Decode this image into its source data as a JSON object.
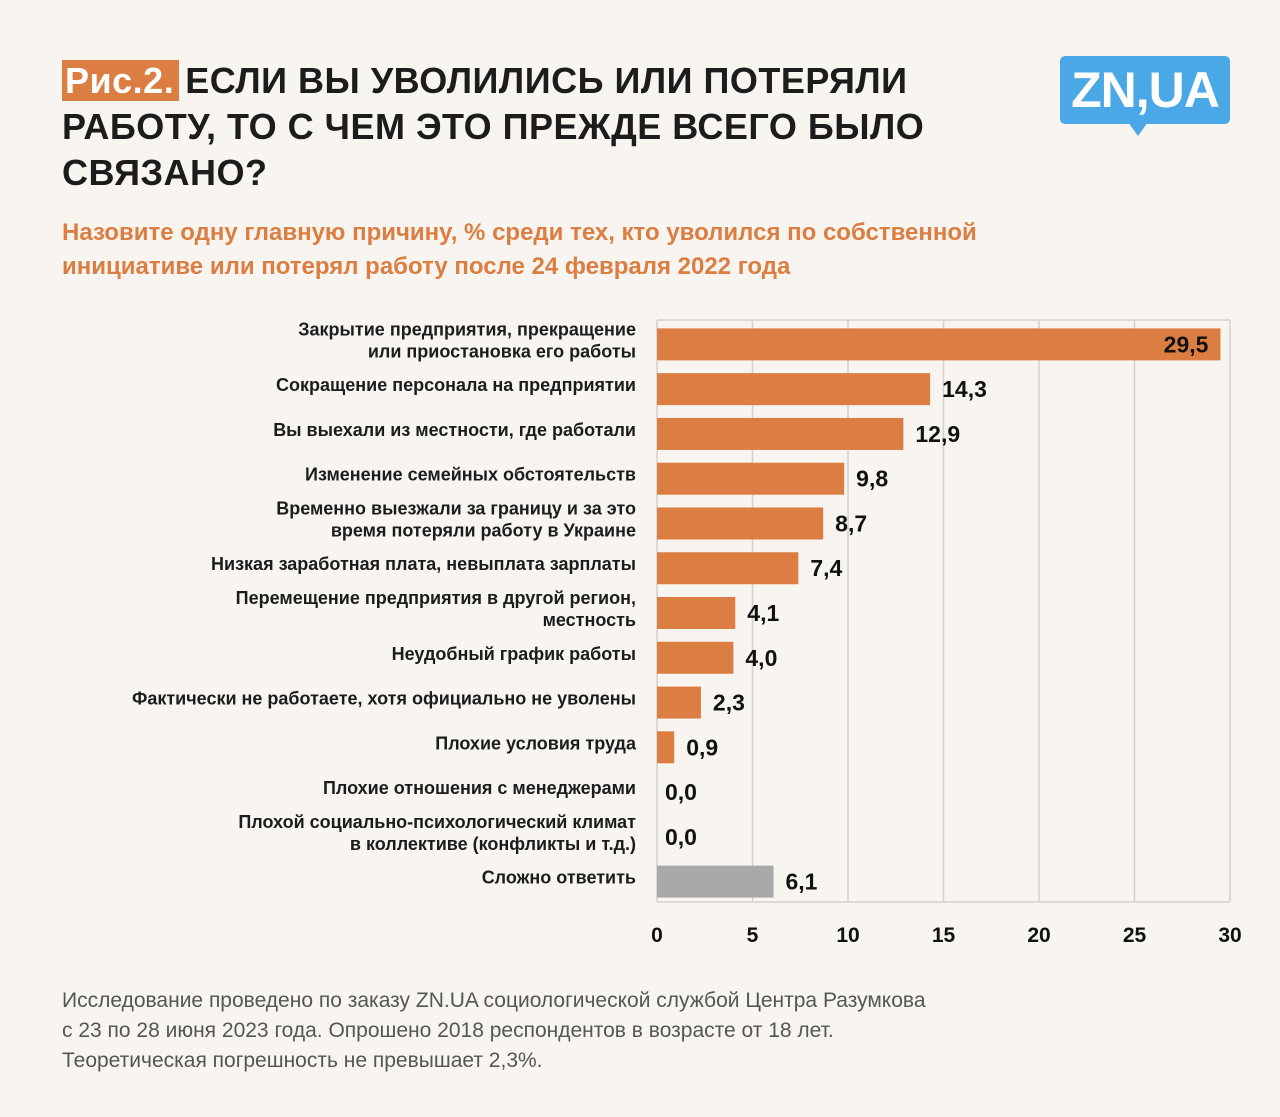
{
  "header": {
    "fig_badge": "Рис.2.",
    "title": "ЕСЛИ ВЫ УВОЛИЛИСЬ ИЛИ ПОТЕРЯЛИ РАБОТУ, ТО С ЧЕМ ЭТО ПРЕЖДЕ ВСЕГО БЫЛО СВЯЗАНО?",
    "subtitle": "Назовите одну главную причину, % среди тех, кто уволился по собственной инициативе или потерял работу после 24 февраля 2022 года",
    "logo_text": "ZN,UA"
  },
  "footer": {
    "lines": [
      "Исследование проведено по заказу ZN.UA социологической службой Центра Разумкова",
      "с 23 по 28 июня 2023 года. Опрошено 2018 респондентов в возрасте от 18 лет.",
      "Теоретическая погрешность не превышает 2,3%."
    ]
  },
  "colors": {
    "bar": "#dc7d41",
    "bar_hard_to_say": "#a9a9a9",
    "accent": "#dc7d41",
    "logo": "#4aa8e6",
    "background": "#f8f5f0",
    "grid": "#d4d1cc"
  },
  "chart_data": {
    "type": "bar",
    "orientation": "horizontal",
    "title": "Если вы уволились или потеряли работу, то с чем это прежде всего было связано?",
    "xlabel": "",
    "ylabel": "",
    "xlim": [
      0,
      30
    ],
    "x_ticks": [
      0,
      5,
      10,
      15,
      20,
      25,
      30
    ],
    "grid": true,
    "categories": [
      [
        "Закрытие предприятия, прекращение",
        "или приостановка его работы"
      ],
      [
        "Сокращение персонала на предприятии"
      ],
      [
        "Вы выехали из местности, где работали"
      ],
      [
        "Изменение семейных обстоятельств"
      ],
      [
        "Временно выезжали за границу и за это",
        "время потеряли работу в Украине"
      ],
      [
        "Низкая заработная плата, невыплата зарплаты"
      ],
      [
        "Перемещение предприятия в другой регион,",
        "местность"
      ],
      [
        "Неудобный график работы"
      ],
      [
        "Фактически не работаете, хотя официально не уволены"
      ],
      [
        "Плохие условия труда"
      ],
      [
        "Плохие отношения с менеджерами"
      ],
      [
        "Плохой социально-психологический климат",
        "в коллективе (конфликты и т.д.)"
      ],
      [
        "Сложно ответить"
      ]
    ],
    "values": [
      29.5,
      14.3,
      12.9,
      9.8,
      8.7,
      7.4,
      4.1,
      4.0,
      2.3,
      0.9,
      0.0,
      0.0,
      6.1
    ],
    "value_labels": [
      "29,5",
      "14,3",
      "12,9",
      "9,8",
      "8,7",
      "7,4",
      "4,1",
      "4,0",
      "2,3",
      "0,9",
      "0,0",
      "0,0",
      "6,1"
    ],
    "highlight_gray": [
      false,
      false,
      false,
      false,
      false,
      false,
      false,
      false,
      false,
      false,
      false,
      false,
      true
    ]
  }
}
